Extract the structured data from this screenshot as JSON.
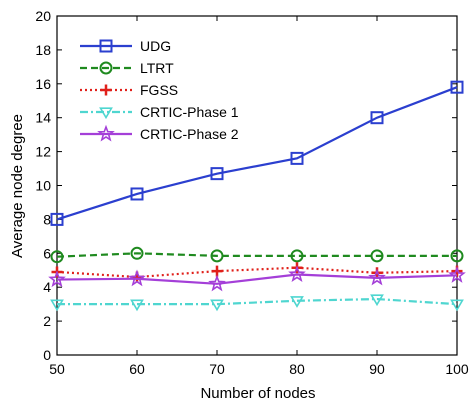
{
  "chart_data": {
    "type": "line",
    "xlabel": "Number of nodes",
    "ylabel": "Average node degree",
    "x": [
      50,
      60,
      70,
      80,
      90,
      100
    ],
    "xlim": [
      50,
      100
    ],
    "ylim": [
      0,
      20
    ],
    "xticks": [
      "50",
      "60",
      "70",
      "80",
      "90",
      "100"
    ],
    "yticks": [
      "0",
      "2",
      "4",
      "6",
      "8",
      "10",
      "12",
      "14",
      "16",
      "18",
      "20"
    ],
    "grid": false,
    "legend_position": "top-left",
    "series": [
      {
        "name": "UDG",
        "values": [
          8.0,
          9.5,
          10.7,
          11.6,
          14.0,
          15.8
        ],
        "color": "#2b3fcf",
        "dash": "solid",
        "marker": "square"
      },
      {
        "name": "LTRT",
        "values": [
          5.8,
          6.0,
          5.85,
          5.85,
          5.85,
          5.85
        ],
        "color": "#1f8a1f",
        "dash": "dashed",
        "marker": "circle"
      },
      {
        "name": "FGSS",
        "values": [
          4.9,
          4.6,
          4.95,
          5.15,
          4.85,
          4.95
        ],
        "color": "#e0201a",
        "dash": "dotted",
        "marker": "plus"
      },
      {
        "name": "CRTIC-Phase 1",
        "values": [
          3.0,
          3.0,
          3.0,
          3.2,
          3.3,
          3.0
        ],
        "color": "#4fd6d0",
        "dash": "dashdot",
        "marker": "triangle-down"
      },
      {
        "name": "CRTIC-Phase 2",
        "values": [
          4.45,
          4.5,
          4.2,
          4.75,
          4.55,
          4.7
        ],
        "color": "#a43fd8",
        "dash": "solid",
        "marker": "star"
      }
    ]
  }
}
